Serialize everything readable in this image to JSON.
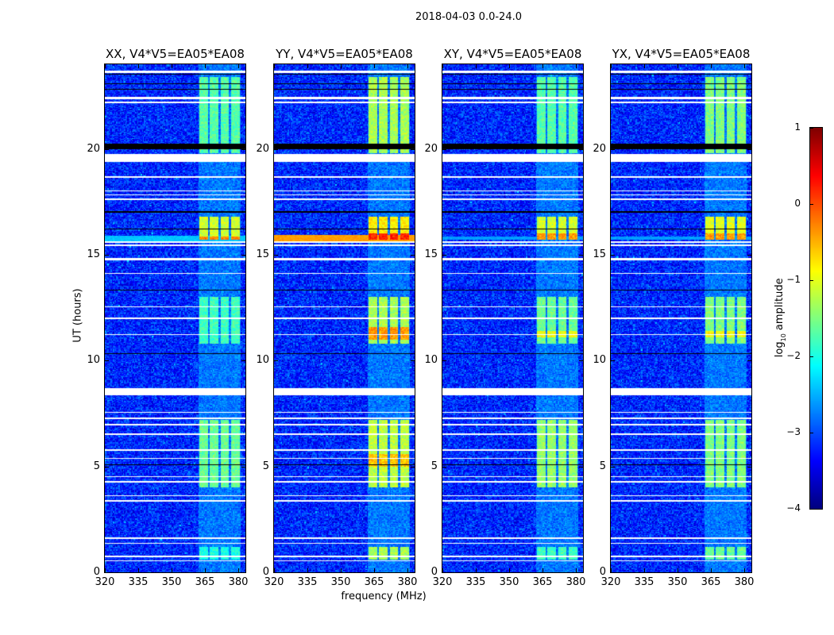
{
  "suptitle": "2018-04-03 0.0-24.0",
  "chart_data": {
    "type": "heatmap",
    "xlabel": "frequency (MHz)",
    "ylabel": "UT (hours)",
    "xlim": [
      320,
      383.2
    ],
    "ylim": [
      0,
      24
    ],
    "xticks": [
      "320",
      "335",
      "350",
      "365",
      "380"
    ],
    "xtick_values": [
      320,
      335,
      350,
      365,
      380
    ],
    "yticks": [
      "0",
      "5",
      "10",
      "15",
      "20"
    ],
    "ytick_values": [
      0,
      5,
      10,
      15,
      20
    ],
    "colorbar": {
      "label_prefix": "log",
      "label_sub": "10",
      "label_suffix": " amplitude",
      "range": [
        -4,
        1
      ],
      "colormap": "jet",
      "ticks": [
        "1",
        "0",
        "−1",
        "−2",
        "−3",
        "−4"
      ],
      "tick_values": [
        1,
        0,
        -1,
        -2,
        -3,
        -4
      ]
    },
    "background_log_amp": -3.2,
    "flagged_hours": [
      [
        23.6,
        23.7
      ],
      [
        22.35,
        22.45
      ],
      [
        22.15,
        22.22
      ],
      [
        19.4,
        19.75
      ],
      [
        18.62,
        18.7
      ],
      [
        18.0,
        18.05
      ],
      [
        17.8,
        17.85
      ],
      [
        17.6,
        17.65
      ],
      [
        15.55,
        15.65
      ],
      [
        15.42,
        15.47
      ],
      [
        14.72,
        14.85
      ],
      [
        14.1,
        14.15
      ],
      [
        12.52,
        12.57
      ],
      [
        11.98,
        12.03
      ],
      [
        11.2,
        11.25
      ],
      [
        8.35,
        8.7
      ],
      [
        7.52,
        7.58
      ],
      [
        7.25,
        7.3
      ],
      [
        6.95,
        7.0
      ],
      [
        6.5,
        6.55
      ],
      [
        5.75,
        5.8
      ],
      [
        5.35,
        5.4
      ],
      [
        4.5,
        4.55
      ],
      [
        4.25,
        4.3
      ],
      [
        3.6,
        3.65
      ],
      [
        3.35,
        3.4
      ],
      [
        1.58,
        1.64
      ],
      [
        1.35,
        1.4
      ],
      [
        0.72,
        0.78
      ],
      [
        0.52,
        0.57
      ]
    ],
    "zero_hours": [
      [
        23.5,
        23.55
      ],
      [
        23.05,
        23.1
      ],
      [
        22.8,
        22.85
      ],
      [
        20.0,
        20.25
      ],
      [
        17.0,
        17.05
      ],
      [
        16.2,
        16.25
      ],
      [
        13.3,
        13.35
      ],
      [
        10.3,
        10.35
      ],
      [
        5.05,
        5.1
      ]
    ],
    "rfi_channels_mhz": [
      [
        362.5,
        366.3
      ],
      [
        367.2,
        371.0
      ],
      [
        372.0,
        375.8
      ],
      [
        376.8,
        380.6
      ]
    ],
    "panels": [
      {
        "title": "XX, V4*V5=EA05*EA08",
        "features": [
          {
            "t": [
              0.6,
              1.2
            ],
            "log_amp": -2.0
          },
          {
            "t": [
              4.0,
              7.2
            ],
            "log_amp": -1.6
          },
          {
            "t": [
              10.8,
              13.0
            ],
            "log_amp": -1.8
          },
          {
            "t": [
              15.7,
              16.8
            ],
            "log_amp": -1.1
          },
          {
            "t": [
              15.7,
              15.85
            ],
            "log_amp": -0.3
          },
          {
            "t": [
              19.8,
              23.4
            ],
            "log_amp": -1.7
          }
        ],
        "broadband": [
          {
            "t": [
              15.65,
              15.9
            ],
            "log_amp": -2.4
          }
        ]
      },
      {
        "title": "YY, V4*V5=EA05*EA08",
        "features": [
          {
            "t": [
              0.6,
              1.2
            ],
            "log_amp": -1.3
          },
          {
            "t": [
              4.0,
              7.2
            ],
            "log_amp": -1.2
          },
          {
            "t": [
              5.0,
              5.6
            ],
            "log_amp": -0.6
          },
          {
            "t": [
              10.8,
              13.0
            ],
            "log_amp": -1.3
          },
          {
            "t": [
              11.0,
              11.6
            ],
            "log_amp": -0.4
          },
          {
            "t": [
              15.7,
              16.8
            ],
            "log_amp": -0.8
          },
          {
            "t": [
              15.7,
              16.0
            ],
            "log_amp": 0.2
          },
          {
            "t": [
              19.8,
              23.4
            ],
            "log_amp": -1.3
          }
        ],
        "broadband": [
          {
            "t": [
              15.65,
              15.95
            ],
            "log_amp": -0.4
          }
        ]
      },
      {
        "title": "XY, V4*V5=EA05*EA08",
        "features": [
          {
            "t": [
              0.6,
              1.2
            ],
            "log_amp": -1.8
          },
          {
            "t": [
              4.0,
              7.2
            ],
            "log_amp": -1.4
          },
          {
            "t": [
              10.8,
              13.0
            ],
            "log_amp": -1.6
          },
          {
            "t": [
              11.1,
              11.4
            ],
            "log_amp": -0.9
          },
          {
            "t": [
              15.7,
              16.8
            ],
            "log_amp": -1.1
          },
          {
            "t": [
              15.7,
              16.0
            ],
            "log_amp": -0.4
          },
          {
            "t": [
              19.8,
              23.4
            ],
            "log_amp": -1.7
          }
        ],
        "broadband": [
          {
            "t": [
              15.7,
              15.85
            ],
            "log_amp": -2.6
          }
        ]
      },
      {
        "title": "YX, V4*V5=EA05*EA08",
        "features": [
          {
            "t": [
              0.6,
              1.2
            ],
            "log_amp": -1.6
          },
          {
            "t": [
              4.0,
              7.2
            ],
            "log_amp": -1.5
          },
          {
            "t": [
              10.8,
              13.0
            ],
            "log_amp": -1.5
          },
          {
            "t": [
              11.1,
              11.4
            ],
            "log_amp": -0.9
          },
          {
            "t": [
              15.7,
              16.8
            ],
            "log_amp": -1.0
          },
          {
            "t": [
              15.7,
              16.0
            ],
            "log_amp": -0.4
          },
          {
            "t": [
              19.8,
              23.4
            ],
            "log_amp": -1.5
          }
        ],
        "broadband": [
          {
            "t": [
              15.7,
              15.85
            ],
            "log_amp": -2.6
          }
        ]
      }
    ]
  }
}
